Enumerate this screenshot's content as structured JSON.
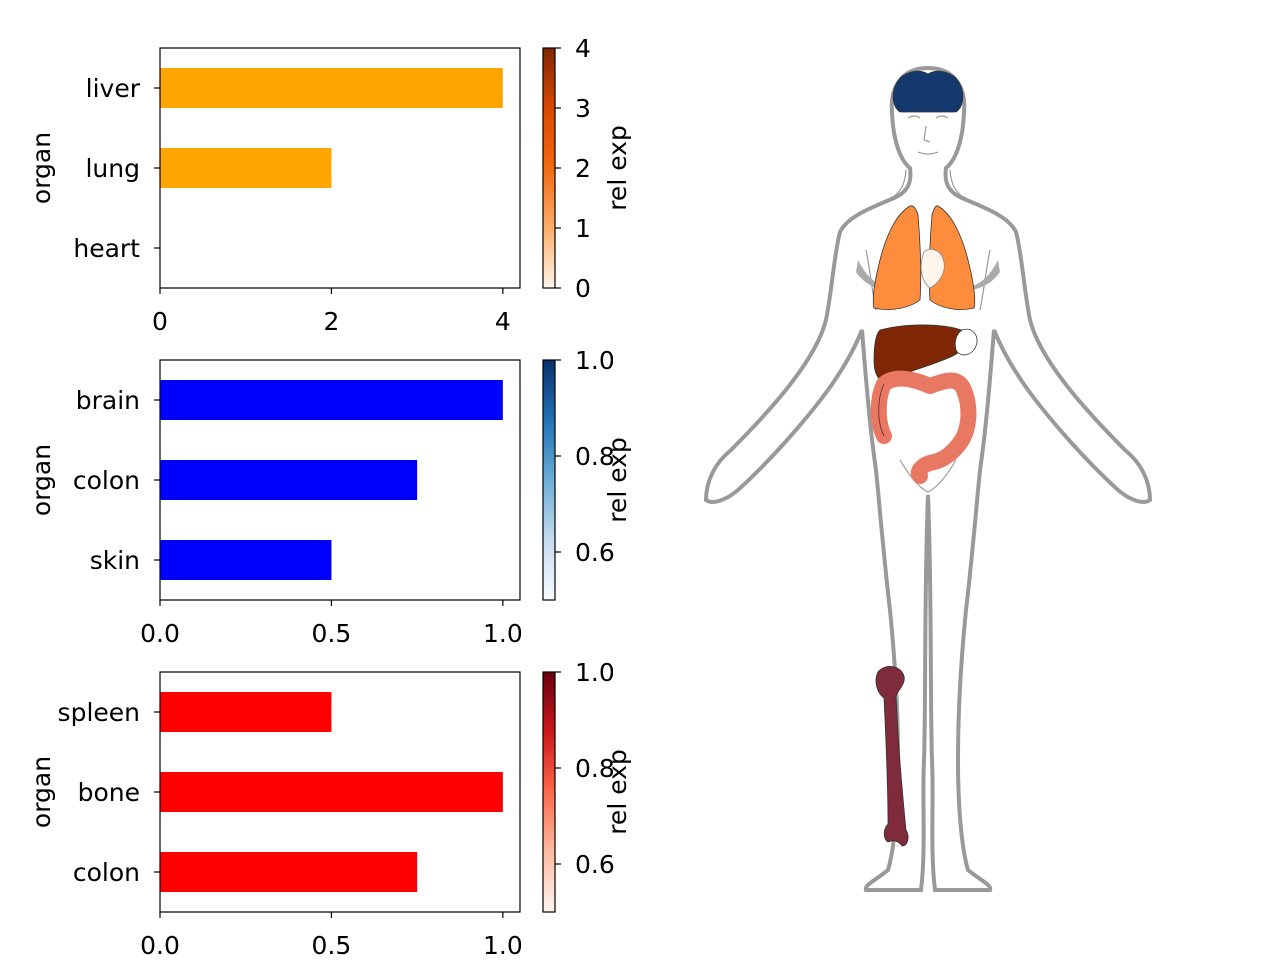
{
  "chart_data": [
    {
      "type": "bar",
      "orientation": "horizontal",
      "categories": [
        "liver",
        "lung",
        "heart"
      ],
      "values": [
        4,
        2,
        0
      ],
      "bar_color": "#ffa500",
      "ylabel": "organ",
      "xlim": [
        0,
        4.2
      ],
      "xticks": [
        "0",
        "2",
        "4"
      ],
      "xtick_values": [
        0,
        2,
        4
      ],
      "colorbar": {
        "label": "rel exp",
        "range": [
          0,
          4
        ],
        "ticks": [
          "0",
          "1",
          "2",
          "3",
          "4"
        ],
        "tick_values": [
          0,
          1,
          2,
          3,
          4
        ],
        "colors": [
          "#fff5eb",
          "#fdae6b",
          "#f16913",
          "#d94801",
          "#7f2704"
        ]
      }
    },
    {
      "type": "bar",
      "orientation": "horizontal",
      "categories": [
        "brain",
        "colon",
        "skin"
      ],
      "values": [
        1.0,
        0.75,
        0.5
      ],
      "bar_color": "#0000ff",
      "ylabel": "organ",
      "xlim": [
        0,
        1.05
      ],
      "xticks": [
        "0.0",
        "0.5",
        "1.0"
      ],
      "xtick_values": [
        0,
        0.5,
        1.0
      ],
      "colorbar": {
        "label": "rel exp",
        "range": [
          0.5,
          1.0
        ],
        "ticks": [
          "0.6",
          "0.8",
          "1.0"
        ],
        "tick_values": [
          0.6,
          0.8,
          1.0
        ],
        "colors": [
          "#f7fbff",
          "#c6dbef",
          "#6baed6",
          "#2171b5",
          "#08306b"
        ]
      }
    },
    {
      "type": "bar",
      "orientation": "horizontal",
      "categories": [
        "spleen",
        "bone",
        "colon"
      ],
      "values": [
        0.5,
        1.0,
        0.75
      ],
      "bar_color": "#ff0000",
      "ylabel": "organ",
      "xlim": [
        0,
        1.05
      ],
      "xticks": [
        "0.0",
        "0.5",
        "1.0"
      ],
      "xtick_values": [
        0,
        0.5,
        1.0
      ],
      "colorbar": {
        "label": "rel exp",
        "range": [
          0.5,
          1.0
        ],
        "ticks": [
          "0.6",
          "0.8",
          "1.0"
        ],
        "tick_values": [
          0.6,
          0.8,
          1.0
        ],
        "colors": [
          "#fff5f0",
          "#fcbba1",
          "#fb6a4a",
          "#cb181d",
          "#67000d"
        ]
      }
    }
  ],
  "anatomy_colors": {
    "outline": "#999999",
    "brain": "#12386e",
    "lung": "#fd8d3c",
    "liver": "#7f2704",
    "colon": "#e87862",
    "bone": "#7f2b3b",
    "heart": "#fff5eb"
  }
}
